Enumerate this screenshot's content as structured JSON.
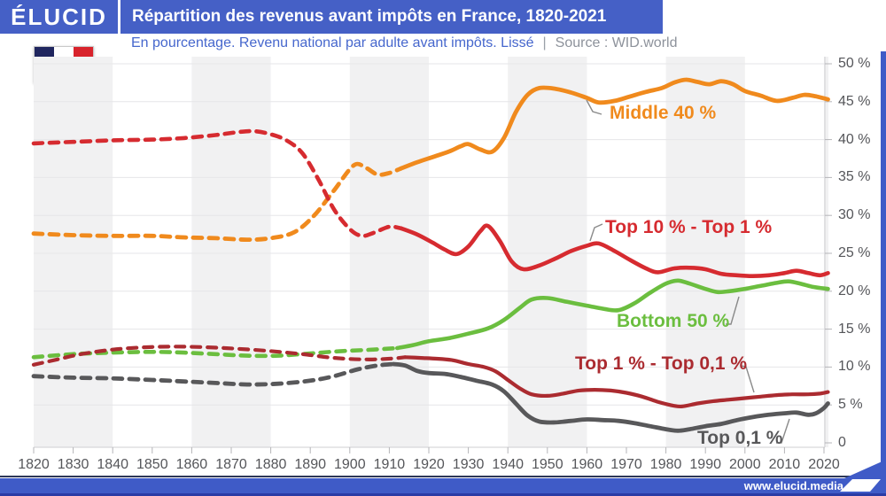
{
  "header": {
    "brand": "ÉLUCID",
    "title": "Répartition des revenus avant impôts en France, 1820-2021"
  },
  "subtitle": {
    "text": "En pourcentage. Revenu national par adulte avant impôts. Lissé",
    "separator": "|",
    "source": "Source : WID.world"
  },
  "footer": {
    "url": "www.elucid.media"
  },
  "icons": {
    "flag": "france-flag",
    "logo_arrow": "elucid-arrow"
  },
  "colors": {
    "header_blue": "#4560c6",
    "accent_strip": "#3f5bc7",
    "band": "#f1f1f2",
    "grid": "#e6e6e8",
    "axis_line": "#cfcfd2",
    "tick": "#b5b5b8",
    "axis_text": "#55565a",
    "leader": "#8a8a8a",
    "flag_blue": "#20265f",
    "flag_red": "#d8232c"
  },
  "chart_data": {
    "type": "line",
    "title": "Répartition des revenus avant impôts en France, 1820-2021",
    "subtitle": "En pourcentage. Revenu national par adulte avant impôts. Lissé",
    "source": "Source : WID.world",
    "xlim": [
      1820,
      2021
    ],
    "ylim": [
      0,
      52
    ],
    "grid": true,
    "x_ticks": [
      1820,
      1830,
      1840,
      1850,
      1860,
      1870,
      1880,
      1890,
      1900,
      1910,
      1920,
      1930,
      1940,
      1950,
      1960,
      1970,
      1980,
      1990,
      2000,
      2010,
      2020
    ],
    "y_tick_values": [
      50,
      45,
      40,
      35,
      30,
      25,
      20,
      15,
      10,
      5,
      0
    ],
    "y_tick_labels": [
      "50 %",
      "45 %",
      "40 %",
      "35 %",
      "30 %",
      "25 %",
      "20 %",
      "15 %",
      "10 %",
      "5 %",
      "0"
    ],
    "bands_years": [
      [
        1820,
        1840
      ],
      [
        1860,
        1880
      ],
      [
        1900,
        1920
      ],
      [
        1940,
        1960
      ],
      [
        1980,
        2000
      ],
      [
        2020,
        2022
      ]
    ],
    "series": [
      {
        "name": "middle-40",
        "label": "Middle 40 %",
        "color": "#f08a1d",
        "dash_until": 1913,
        "points": [
          [
            1820,
            27.6
          ],
          [
            1830,
            27.4
          ],
          [
            1840,
            27.3
          ],
          [
            1850,
            27.3
          ],
          [
            1858,
            27.1
          ],
          [
            1866,
            27.0
          ],
          [
            1874,
            26.8
          ],
          [
            1880,
            27.0
          ],
          [
            1886,
            27.8
          ],
          [
            1891,
            30.0
          ],
          [
            1896,
            33.3
          ],
          [
            1901,
            36.6
          ],
          [
            1904,
            36.3
          ],
          [
            1907,
            35.4
          ],
          [
            1910,
            35.6
          ],
          [
            1913,
            36.2
          ],
          [
            1917,
            37.0
          ],
          [
            1921,
            37.7
          ],
          [
            1925,
            38.4
          ],
          [
            1928,
            39.1
          ],
          [
            1930,
            39.4
          ],
          [
            1933,
            38.7
          ],
          [
            1936,
            38.4
          ],
          [
            1939,
            40.2
          ],
          [
            1942,
            43.6
          ],
          [
            1945,
            45.9
          ],
          [
            1948,
            46.8
          ],
          [
            1952,
            46.7
          ],
          [
            1956,
            46.2
          ],
          [
            1960,
            45.5
          ],
          [
            1963,
            44.9
          ],
          [
            1967,
            45.1
          ],
          [
            1971,
            45.7
          ],
          [
            1975,
            46.3
          ],
          [
            1979,
            46.8
          ],
          [
            1982,
            47.5
          ],
          [
            1985,
            47.9
          ],
          [
            1988,
            47.6
          ],
          [
            1991,
            47.3
          ],
          [
            1994,
            47.7
          ],
          [
            1997,
            47.3
          ],
          [
            2000,
            46.4
          ],
          [
            2004,
            45.8
          ],
          [
            2008,
            45.1
          ],
          [
            2012,
            45.5
          ],
          [
            2015,
            45.9
          ],
          [
            2018,
            45.7
          ],
          [
            2021,
            45.3
          ]
        ]
      },
      {
        "name": "top10-top1",
        "label": "Top 10 % - Top 1 %",
        "color": "#d62b30",
        "dash_until": 1913,
        "points": [
          [
            1820,
            39.5
          ],
          [
            1830,
            39.7
          ],
          [
            1840,
            39.9
          ],
          [
            1850,
            40.0
          ],
          [
            1858,
            40.2
          ],
          [
            1866,
            40.6
          ],
          [
            1872,
            41.0
          ],
          [
            1876,
            41.1
          ],
          [
            1880,
            40.7
          ],
          [
            1884,
            39.9
          ],
          [
            1888,
            38.2
          ],
          [
            1892,
            34.8
          ],
          [
            1896,
            30.8
          ],
          [
            1900,
            28.2
          ],
          [
            1903,
            27.3
          ],
          [
            1906,
            27.7
          ],
          [
            1910,
            28.5
          ],
          [
            1913,
            28.3
          ],
          [
            1917,
            27.5
          ],
          [
            1921,
            26.4
          ],
          [
            1924,
            25.5
          ],
          [
            1927,
            24.9
          ],
          [
            1930,
            25.9
          ],
          [
            1933,
            27.9
          ],
          [
            1935,
            28.6
          ],
          [
            1938,
            26.6
          ],
          [
            1941,
            23.9
          ],
          [
            1944,
            22.9
          ],
          [
            1948,
            23.4
          ],
          [
            1952,
            24.3
          ],
          [
            1956,
            25.3
          ],
          [
            1960,
            26.0
          ],
          [
            1963,
            26.3
          ],
          [
            1967,
            25.3
          ],
          [
            1971,
            24.1
          ],
          [
            1975,
            23.0
          ],
          [
            1978,
            22.5
          ],
          [
            1982,
            23.0
          ],
          [
            1986,
            23.1
          ],
          [
            1990,
            22.9
          ],
          [
            1994,
            22.3
          ],
          [
            1998,
            22.1
          ],
          [
            2002,
            22.0
          ],
          [
            2006,
            22.1
          ],
          [
            2010,
            22.4
          ],
          [
            2013,
            22.7
          ],
          [
            2016,
            22.4
          ],
          [
            2019,
            22.1
          ],
          [
            2021,
            22.4
          ]
        ]
      },
      {
        "name": "bottom-50",
        "label": "Bottom 50 %",
        "color": "#6bbe3f",
        "dash_until": 1912,
        "points": [
          [
            1820,
            11.3
          ],
          [
            1830,
            11.7
          ],
          [
            1840,
            11.9
          ],
          [
            1850,
            12.0
          ],
          [
            1858,
            11.9
          ],
          [
            1866,
            11.7
          ],
          [
            1874,
            11.5
          ],
          [
            1882,
            11.5
          ],
          [
            1890,
            11.8
          ],
          [
            1898,
            12.1
          ],
          [
            1906,
            12.3
          ],
          [
            1912,
            12.5
          ],
          [
            1916,
            12.9
          ],
          [
            1920,
            13.4
          ],
          [
            1925,
            13.8
          ],
          [
            1930,
            14.4
          ],
          [
            1935,
            15.1
          ],
          [
            1939,
            16.2
          ],
          [
            1943,
            17.8
          ],
          [
            1946,
            18.9
          ],
          [
            1950,
            19.1
          ],
          [
            1955,
            18.6
          ],
          [
            1960,
            18.1
          ],
          [
            1964,
            17.7
          ],
          [
            1968,
            17.5
          ],
          [
            1972,
            18.4
          ],
          [
            1976,
            19.8
          ],
          [
            1980,
            21.0
          ],
          [
            1983,
            21.4
          ],
          [
            1986,
            21.0
          ],
          [
            1990,
            20.3
          ],
          [
            1993,
            19.9
          ],
          [
            1996,
            20.0
          ],
          [
            2000,
            20.3
          ],
          [
            2004,
            20.7
          ],
          [
            2008,
            21.1
          ],
          [
            2011,
            21.3
          ],
          [
            2014,
            21.0
          ],
          [
            2017,
            20.6
          ],
          [
            2021,
            20.3
          ]
        ]
      },
      {
        "name": "top1-top01",
        "label": "Top 1 % - Top 0,1 %",
        "color": "#ab2b30",
        "dash_until": 1914,
        "points": [
          [
            1820,
            10.3
          ],
          [
            1826,
            11.0
          ],
          [
            1832,
            11.7
          ],
          [
            1840,
            12.3
          ],
          [
            1848,
            12.6
          ],
          [
            1856,
            12.7
          ],
          [
            1864,
            12.6
          ],
          [
            1872,
            12.4
          ],
          [
            1880,
            12.1
          ],
          [
            1888,
            11.7
          ],
          [
            1896,
            11.2
          ],
          [
            1904,
            11.0
          ],
          [
            1910,
            11.1
          ],
          [
            1914,
            11.3
          ],
          [
            1918,
            11.2
          ],
          [
            1922,
            11.1
          ],
          [
            1926,
            10.9
          ],
          [
            1930,
            10.4
          ],
          [
            1934,
            10.0
          ],
          [
            1937,
            9.4
          ],
          [
            1940,
            8.3
          ],
          [
            1943,
            7.2
          ],
          [
            1946,
            6.4
          ],
          [
            1950,
            6.2
          ],
          [
            1954,
            6.5
          ],
          [
            1958,
            6.9
          ],
          [
            1962,
            7.0
          ],
          [
            1966,
            6.9
          ],
          [
            1970,
            6.6
          ],
          [
            1974,
            6.1
          ],
          [
            1978,
            5.4
          ],
          [
            1981,
            5.0
          ],
          [
            1984,
            4.8
          ],
          [
            1988,
            5.2
          ],
          [
            1992,
            5.5
          ],
          [
            1996,
            5.7
          ],
          [
            2000,
            5.9
          ],
          [
            2004,
            6.1
          ],
          [
            2008,
            6.3
          ],
          [
            2012,
            6.4
          ],
          [
            2016,
            6.4
          ],
          [
            2019,
            6.5
          ],
          [
            2021,
            6.7
          ]
        ]
      },
      {
        "name": "top01",
        "label": "Top 0,1 %",
        "color": "#58585a",
        "dash_until": 1911,
        "points": [
          [
            1820,
            8.8
          ],
          [
            1830,
            8.6
          ],
          [
            1840,
            8.5
          ],
          [
            1850,
            8.3
          ],
          [
            1858,
            8.1
          ],
          [
            1866,
            7.9
          ],
          [
            1874,
            7.7
          ],
          [
            1882,
            7.8
          ],
          [
            1890,
            8.2
          ],
          [
            1896,
            8.8
          ],
          [
            1902,
            9.7
          ],
          [
            1907,
            10.2
          ],
          [
            1911,
            10.4
          ],
          [
            1914,
            10.2
          ],
          [
            1917,
            9.5
          ],
          [
            1920,
            9.2
          ],
          [
            1924,
            9.1
          ],
          [
            1928,
            8.7
          ],
          [
            1932,
            8.2
          ],
          [
            1936,
            7.7
          ],
          [
            1939,
            6.8
          ],
          [
            1942,
            5.2
          ],
          [
            1945,
            3.6
          ],
          [
            1948,
            2.8
          ],
          [
            1952,
            2.7
          ],
          [
            1956,
            2.9
          ],
          [
            1960,
            3.1
          ],
          [
            1964,
            3.0
          ],
          [
            1968,
            2.9
          ],
          [
            1972,
            2.6
          ],
          [
            1976,
            2.2
          ],
          [
            1980,
            1.8
          ],
          [
            1983,
            1.6
          ],
          [
            1986,
            1.8
          ],
          [
            1990,
            2.2
          ],
          [
            1994,
            2.5
          ],
          [
            1998,
            3.0
          ],
          [
            2002,
            3.4
          ],
          [
            2006,
            3.7
          ],
          [
            2010,
            3.9
          ],
          [
            2013,
            4.0
          ],
          [
            2016,
            3.7
          ],
          [
            2018,
            3.9
          ],
          [
            2020,
            4.6
          ],
          [
            2021,
            5.2
          ]
        ]
      }
    ]
  }
}
